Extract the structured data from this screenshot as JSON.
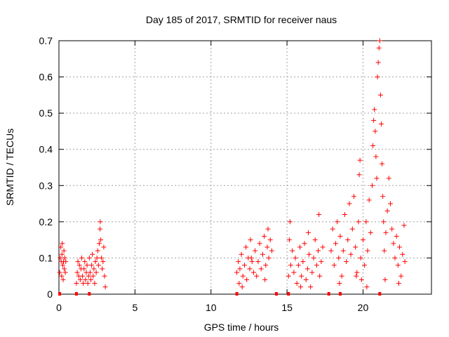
{
  "chart_data": {
    "type": "scatter",
    "title": "Day 185 of 2017, SRMTID for receiver naus",
    "xlabel": "GPS time / hours",
    "ylabel": "SRMTID / TECUs",
    "xlim": [
      0,
      24.5
    ],
    "ylim": [
      0,
      0.7
    ],
    "grid": true,
    "marker_color": "#ff0000",
    "xticks": [
      {
        "value": 0,
        "label": "0"
      },
      {
        "value": 5,
        "label": "5"
      },
      {
        "value": 10,
        "label": "10"
      },
      {
        "value": 15,
        "label": "15"
      },
      {
        "value": 20,
        "label": "20"
      }
    ],
    "yticks": [
      {
        "value": 0,
        "label": "0"
      },
      {
        "value": 0.1,
        "label": "0.1"
      },
      {
        "value": 0.2,
        "label": "0.2"
      },
      {
        "value": 0.3,
        "label": "0.3"
      },
      {
        "value": 0.4,
        "label": "0.4"
      },
      {
        "value": 0.5,
        "label": "0.5"
      },
      {
        "value": 0.6,
        "label": "0.6"
      },
      {
        "value": 0.7,
        "label": "0.7"
      }
    ],
    "series": [
      {
        "name": "SRMTID",
        "marker": "plus",
        "points": [
          [
            0.05,
            0.06
          ],
          [
            0.08,
            0.1
          ],
          [
            0.12,
            0.13
          ],
          [
            0.15,
            0.09
          ],
          [
            0.18,
            0.05
          ],
          [
            0.2,
            0.11
          ],
          [
            0.22,
            0.14
          ],
          [
            0.25,
            0.08
          ],
          [
            0.28,
            0.04
          ],
          [
            0.3,
            0.09
          ],
          [
            0.33,
            0.12
          ],
          [
            0.35,
            0.07
          ],
          [
            0.38,
            0.1
          ],
          [
            0.42,
            0.06
          ],
          [
            0.45,
            0.09
          ],
          [
            1.15,
            0.03
          ],
          [
            1.2,
            0.06
          ],
          [
            1.25,
            0.09
          ],
          [
            1.3,
            0.05
          ],
          [
            1.35,
            0.08
          ],
          [
            1.4,
            0.04
          ],
          [
            1.45,
            0.07
          ],
          [
            1.5,
            0.1
          ],
          [
            1.55,
            0.05
          ],
          [
            1.6,
            0.03
          ],
          [
            1.65,
            0.07
          ],
          [
            1.7,
            0.09
          ],
          [
            1.75,
            0.04
          ],
          [
            1.8,
            0.06
          ],
          [
            1.85,
            0.08
          ],
          [
            1.9,
            0.03
          ],
          [
            1.95,
            0.05
          ],
          [
            2.0,
            0.1
          ],
          [
            2.05,
            0.06
          ],
          [
            2.1,
            0.04
          ],
          [
            2.15,
            0.08
          ],
          [
            2.2,
            0.11
          ],
          [
            2.25,
            0.05
          ],
          [
            2.3,
            0.07
          ],
          [
            2.35,
            0.03
          ],
          [
            2.4,
            0.09
          ],
          [
            2.45,
            0.06
          ],
          [
            2.5,
            0.1
          ],
          [
            2.55,
            0.12
          ],
          [
            2.6,
            0.08
          ],
          [
            2.65,
            0.14
          ],
          [
            2.7,
            0.18
          ],
          [
            2.72,
            0.2
          ],
          [
            2.75,
            0.15
          ],
          [
            2.8,
            0.1
          ],
          [
            2.85,
            0.07
          ],
          [
            2.9,
            0.09
          ],
          [
            2.95,
            0.13
          ],
          [
            3.0,
            0.05
          ],
          [
            3.05,
            0.02
          ],
          [
            11.7,
            0.06
          ],
          [
            11.8,
            0.09
          ],
          [
            11.85,
            0.03
          ],
          [
            11.9,
            0.07
          ],
          [
            12.0,
            0.11
          ],
          [
            12.1,
            0.05
          ],
          [
            12.2,
            0.08
          ],
          [
            12.3,
            0.13
          ],
          [
            12.35,
            0.04
          ],
          [
            12.45,
            0.1
          ],
          [
            12.55,
            0.07
          ],
          [
            12.6,
            0.15
          ],
          [
            12.7,
            0.09
          ],
          [
            12.8,
            0.06
          ],
          [
            12.9,
            0.12
          ],
          [
            13.0,
            0.05
          ],
          [
            13.1,
            0.09
          ],
          [
            13.2,
            0.14
          ],
          [
            13.3,
            0.07
          ],
          [
            13.4,
            0.11
          ],
          [
            13.5,
            0.16
          ],
          [
            13.6,
            0.08
          ],
          [
            13.7,
            0.13
          ],
          [
            13.75,
            0.18
          ],
          [
            13.8,
            0.1
          ],
          [
            13.9,
            0.15
          ],
          [
            14.0,
            0.12
          ],
          [
            13.55,
            0.04
          ],
          [
            12.05,
            0.02
          ],
          [
            12.65,
            0.1
          ],
          [
            15.1,
            0.05
          ],
          [
            15.15,
            0.15
          ],
          [
            15.2,
            0.2
          ],
          [
            15.25,
            0.08
          ],
          [
            15.35,
            0.12
          ],
          [
            15.45,
            0.06
          ],
          [
            15.55,
            0.1
          ],
          [
            15.65,
            0.03
          ],
          [
            15.75,
            0.08
          ],
          [
            15.85,
            0.13
          ],
          [
            15.95,
            0.05
          ],
          [
            16.05,
            0.09
          ],
          [
            16.15,
            0.14
          ],
          [
            16.25,
            0.04
          ],
          [
            16.35,
            0.07
          ],
          [
            16.45,
            0.11
          ],
          [
            16.55,
            0.02
          ],
          [
            16.65,
            0.06
          ],
          [
            16.75,
            0.1
          ],
          [
            16.85,
            0.15
          ],
          [
            16.95,
            0.08
          ],
          [
            17.05,
            0.12
          ],
          [
            17.1,
            0.22
          ],
          [
            17.15,
            0.05
          ],
          [
            17.25,
            0.09
          ],
          [
            17.35,
            0.13
          ],
          [
            16.4,
            0.17
          ],
          [
            15.9,
            0.02
          ],
          [
            17.9,
            0.12
          ],
          [
            18.0,
            0.18
          ],
          [
            18.1,
            0.08
          ],
          [
            18.2,
            0.14
          ],
          [
            18.3,
            0.2
          ],
          [
            18.4,
            0.1
          ],
          [
            18.5,
            0.16
          ],
          [
            18.6,
            0.05
          ],
          [
            18.7,
            0.12
          ],
          [
            18.8,
            0.22
          ],
          [
            18.9,
            0.09
          ],
          [
            19.0,
            0.15
          ],
          [
            19.1,
            0.25
          ],
          [
            19.2,
            0.11
          ],
          [
            19.3,
            0.18
          ],
          [
            19.4,
            0.27
          ],
          [
            19.5,
            0.13
          ],
          [
            19.6,
            0.06
          ],
          [
            19.7,
            0.2
          ],
          [
            19.75,
            0.33
          ],
          [
            19.8,
            0.37
          ],
          [
            19.85,
            0.1
          ],
          [
            19.9,
            0.04
          ],
          [
            20.0,
            0.15
          ],
          [
            20.1,
            0.08
          ],
          [
            20.2,
            0.2
          ],
          [
            20.3,
            0.12
          ],
          [
            20.4,
            0.26
          ],
          [
            20.5,
            0.17
          ],
          [
            20.6,
            0.3
          ],
          [
            20.65,
            0.41
          ],
          [
            20.7,
            0.48
          ],
          [
            20.75,
            0.51
          ],
          [
            20.8,
            0.45
          ],
          [
            20.85,
            0.38
          ],
          [
            20.9,
            0.32
          ],
          [
            20.95,
            0.6
          ],
          [
            21.0,
            0.64
          ],
          [
            21.05,
            0.68
          ],
          [
            21.1,
            0.7
          ],
          [
            21.15,
            0.55
          ],
          [
            21.2,
            0.47
          ],
          [
            21.25,
            0.36
          ],
          [
            21.3,
            0.27
          ],
          [
            21.35,
            0.2
          ],
          [
            21.4,
            0.12
          ],
          [
            21.5,
            0.17
          ],
          [
            21.6,
            0.23
          ],
          [
            21.7,
            0.32
          ],
          [
            21.8,
            0.25
          ],
          [
            21.9,
            0.18
          ],
          [
            22.0,
            0.14
          ],
          [
            22.1,
            0.1
          ],
          [
            22.2,
            0.16
          ],
          [
            22.3,
            0.08
          ],
          [
            22.4,
            0.13
          ],
          [
            22.5,
            0.05
          ],
          [
            22.6,
            0.11
          ],
          [
            22.7,
            0.19
          ],
          [
            22.75,
            0.09
          ],
          [
            19.55,
            0.05
          ],
          [
            18.45,
            0.03
          ],
          [
            20.25,
            0.02
          ],
          [
            21.45,
            0.04
          ],
          [
            22.35,
            0.03
          ]
        ]
      }
    ],
    "zero_markers": [
      0.05,
      1.15,
      2.0,
      11.7,
      14.3,
      15.1,
      17.75,
      18.5,
      21.1
    ]
  }
}
